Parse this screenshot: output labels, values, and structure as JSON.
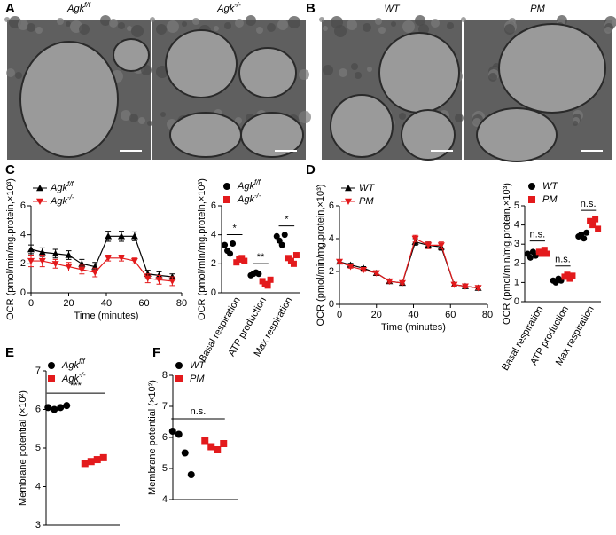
{
  "panel_labels": [
    "A",
    "B",
    "C",
    "D",
    "E",
    "F"
  ],
  "images": [
    {
      "caption": "Agk",
      "caption_sup": "f/f"
    },
    {
      "caption": "Agk",
      "caption_sup": "-/-"
    },
    {
      "caption": "WT"
    },
    {
      "caption": "PM"
    }
  ],
  "chart_data": [
    {
      "type": "line",
      "xlabel": "Time (minutes)",
      "ylabel": "OCR (pmol/min/mg.protein,×10³)",
      "x": [
        0,
        6,
        13,
        20,
        27,
        34,
        41,
        48,
        55,
        62,
        68,
        75
      ],
      "xlim": [
        0,
        80
      ],
      "xticks": [
        0,
        20,
        40,
        60,
        80
      ],
      "ylim": [
        0,
        6
      ],
      "yticks": [
        0,
        2,
        4,
        6
      ],
      "series": [
        {
          "name": "Agk",
          "name_sup": "f/f",
          "color": "#000000",
          "marker": "triangle",
          "values": [
            3.0,
            2.8,
            2.7,
            2.6,
            2.0,
            1.8,
            3.9,
            3.9,
            3.9,
            1.3,
            1.2,
            1.1
          ],
          "errors": [
            0.3,
            0.3,
            0.3,
            0.3,
            0.3,
            0.3,
            0.35,
            0.35,
            0.3,
            0.25,
            0.25,
            0.2
          ]
        },
        {
          "name": "Agk",
          "name_sup": "-/-",
          "color": "#e31a1c",
          "marker": "triangle-down",
          "values": [
            2.2,
            2.2,
            2.0,
            1.8,
            1.6,
            1.4,
            2.4,
            2.4,
            2.2,
            1.0,
            0.9,
            0.8
          ],
          "errors": [
            0.4,
            0.4,
            0.3,
            0.3,
            0.3,
            0.3,
            0.2,
            0.2,
            0.2,
            0.3,
            0.3,
            0.3
          ]
        }
      ]
    },
    {
      "type": "dot",
      "ylabel": "OCR (pmol/min/mg.protein,×10³)",
      "categories": [
        "Basal respiration",
        "ATP production",
        "Max respiration"
      ],
      "ylim": [
        0,
        6
      ],
      "yticks": [
        0,
        2,
        4,
        6
      ],
      "significance": [
        "*",
        "**",
        "*"
      ],
      "series": [
        {
          "name": "Agk",
          "name_sup": "f/f",
          "color": "#000000",
          "marker": "circle",
          "values": [
            [
              3.3,
              2.9,
              2.7,
              3.4
            ],
            [
              1.2,
              1.3,
              1.4,
              1.3
            ],
            [
              3.9,
              3.6,
              3.3,
              4.0
            ]
          ]
        },
        {
          "name": "Agk",
          "name_sup": "-/-",
          "color": "#e31a1c",
          "marker": "square",
          "values": [
            [
              2.1,
              2.3,
              2.4,
              2.2
            ],
            [
              0.8,
              0.6,
              0.5,
              0.9
            ],
            [
              2.4,
              2.2,
              2.0,
              2.6
            ]
          ]
        }
      ]
    },
    {
      "type": "line",
      "xlabel": "Time (minutes)",
      "ylabel": "OCR (pmol/min/mg.protein,×10³)",
      "x": [
        0,
        6,
        13,
        20,
        27,
        34,
        41,
        48,
        55,
        62,
        68,
        75
      ],
      "xlim": [
        0,
        80
      ],
      "xticks": [
        0,
        20,
        40,
        60,
        80
      ],
      "ylim": [
        0,
        6
      ],
      "yticks": [
        0,
        2,
        4,
        6
      ],
      "series": [
        {
          "name": "WT",
          "color": "#000000",
          "marker": "triangle",
          "values": [
            2.6,
            2.4,
            2.2,
            1.9,
            1.4,
            1.3,
            3.8,
            3.6,
            3.5,
            1.2,
            1.1,
            1.0
          ],
          "errors": [
            0.1,
            0.1,
            0.1,
            0.1,
            0.1,
            0.1,
            0.2,
            0.2,
            0.2,
            0.1,
            0.1,
            0.1
          ]
        },
        {
          "name": "PM",
          "color": "#e31a1c",
          "marker": "triangle-down",
          "values": [
            2.6,
            2.3,
            2.1,
            1.9,
            1.4,
            1.3,
            4.0,
            3.6,
            3.6,
            1.2,
            1.1,
            1.0
          ],
          "errors": [
            0.1,
            0.1,
            0.1,
            0.1,
            0.1,
            0.1,
            0.2,
            0.2,
            0.2,
            0.1,
            0.1,
            0.1
          ]
        }
      ]
    },
    {
      "type": "dot",
      "ylabel": "OCR (pmol/min/mg.protein,×10³)",
      "categories": [
        "Basal respiration",
        "ATP production",
        "Max respiration"
      ],
      "ylim": [
        0,
        5
      ],
      "yticks": [
        0,
        1,
        2,
        3,
        4,
        5
      ],
      "significance": [
        "n.s.",
        "n.s.",
        "n.s."
      ],
      "series": [
        {
          "name": "WT",
          "color": "#000000",
          "marker": "circle",
          "values": [
            [
              2.5,
              2.3,
              2.6,
              2.4
            ],
            [
              1.1,
              1.0,
              1.2,
              1.1
            ],
            [
              3.4,
              3.5,
              3.3,
              3.6
            ]
          ]
        },
        {
          "name": "PM",
          "color": "#e31a1c",
          "marker": "square",
          "values": [
            [
              2.6,
              2.5,
              2.7,
              2.5
            ],
            [
              1.3,
              1.4,
              1.2,
              1.35
            ],
            [
              4.2,
              4.0,
              4.3,
              3.8
            ]
          ]
        }
      ]
    },
    {
      "type": "strip",
      "ylabel": "Membrane potential (×10²)",
      "ylim": [
        3,
        7
      ],
      "yticks": [
        3,
        4,
        5,
        6,
        7
      ],
      "significance": "***",
      "series": [
        {
          "name": "Agk",
          "name_sup": "f/f",
          "color": "#000000",
          "marker": "circle",
          "values": [
            6.05,
            6.0,
            6.05,
            6.1
          ]
        },
        {
          "name": "Agk",
          "name_sup": "-/-",
          "color": "#e31a1c",
          "marker": "square",
          "values": [
            4.6,
            4.65,
            4.7,
            4.75
          ]
        }
      ]
    },
    {
      "type": "strip",
      "ylabel": "Membrane potential (×10²)",
      "ylim": [
        4,
        8
      ],
      "yticks": [
        4,
        5,
        6,
        7,
        8
      ],
      "significance": "n.s.",
      "series": [
        {
          "name": "WT",
          "color": "#000000",
          "marker": "circle",
          "values": [
            6.2,
            6.1,
            5.5,
            4.8
          ]
        },
        {
          "name": "PM",
          "color": "#e31a1c",
          "marker": "square",
          "values": [
            5.9,
            5.7,
            5.6,
            5.8
          ]
        }
      ]
    }
  ]
}
